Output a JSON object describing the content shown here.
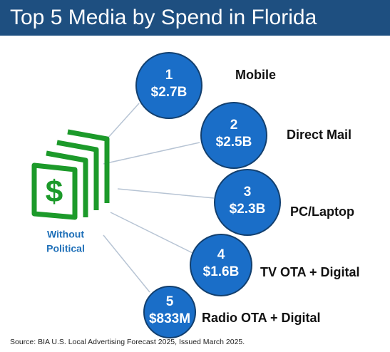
{
  "header": {
    "title": "Top 5 Media by Spend in Florida"
  },
  "hub": {
    "label_lines": [
      "Without",
      "Political"
    ]
  },
  "items": [
    {
      "rank": "1",
      "value": "$2.7B",
      "name": "Mobile"
    },
    {
      "rank": "2",
      "value": "$2.5B",
      "name": "Direct Mail"
    },
    {
      "rank": "3",
      "value": "$2.3B",
      "name": "PC/Laptop"
    },
    {
      "rank": "4",
      "value": "$1.6B",
      "name": "TV OTA + Digital"
    },
    {
      "rank": "5",
      "value": "$833M",
      "name": "Radio OTA + Digital"
    }
  ],
  "source": "Source: BIA U.S. Local Advertising Forecast 2025, Issued March 2025."
}
